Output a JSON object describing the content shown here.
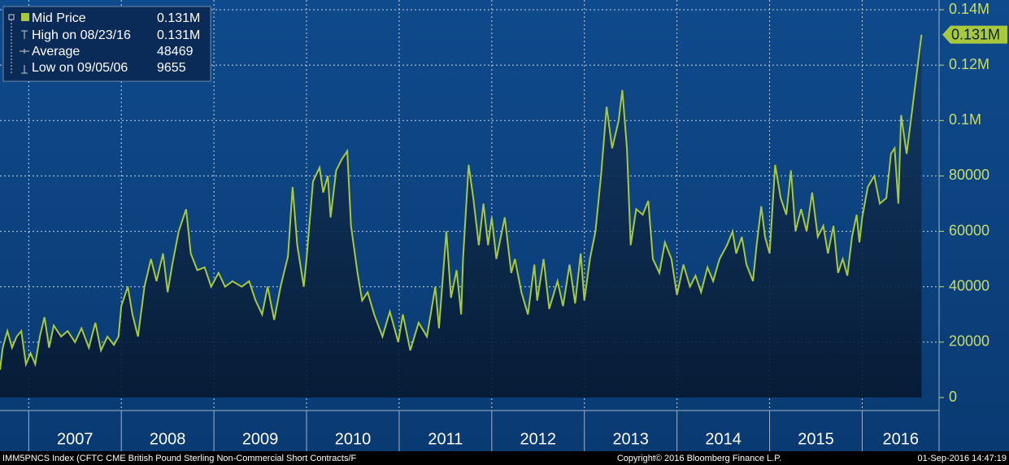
{
  "chart_data": {
    "type": "area",
    "x": [
      2006.69,
      2006.72,
      2006.77,
      2006.82,
      2006.87,
      2006.92,
      2006.97,
      2007.02,
      2007.07,
      2007.12,
      2007.17,
      2007.22,
      2007.27,
      2007.35,
      2007.42,
      2007.5,
      2007.57,
      2007.65,
      2007.72,
      2007.78,
      2007.85,
      2007.92,
      2007.97,
      2008.0,
      2008.07,
      2008.12,
      2008.18,
      2008.25,
      2008.32,
      2008.38,
      2008.45,
      2008.5,
      2008.55,
      2008.62,
      2008.7,
      2008.75,
      2008.82,
      2008.9,
      2008.97,
      2009.05,
      2009.12,
      2009.2,
      2009.3,
      2009.38,
      2009.45,
      2009.52,
      2009.58,
      2009.65,
      2009.72,
      2009.8,
      2009.85,
      2009.9,
      2009.97,
      2010.0,
      2010.07,
      2010.14,
      2010.18,
      2010.23,
      2010.26,
      2010.32,
      2010.38,
      2010.44,
      2010.48,
      2010.55,
      2010.6,
      2010.66,
      2010.73,
      2010.82,
      2010.9,
      2010.99,
      2011.04,
      2011.12,
      2011.21,
      2011.3,
      2011.39,
      2011.43,
      2011.51,
      2011.56,
      2011.62,
      2011.67,
      2011.69,
      2011.75,
      2011.8,
      2011.86,
      2011.91,
      2011.96,
      2012.0,
      2012.05,
      2012.14,
      2012.21,
      2012.25,
      2012.32,
      2012.39,
      2012.46,
      2012.49,
      2012.56,
      2012.62,
      2012.71,
      2012.77,
      2012.84,
      2012.9,
      2012.96,
      2013.0,
      2013.06,
      2013.12,
      2013.18,
      2013.24,
      2013.3,
      2013.37,
      2013.41,
      2013.46,
      2013.5,
      2013.56,
      2013.63,
      2013.69,
      2013.74,
      2013.81,
      2013.87,
      2013.94,
      2014.0,
      2014.07,
      2014.14,
      2014.2,
      2014.26,
      2014.33,
      2014.39,
      2014.46,
      2014.54,
      2014.6,
      2014.64,
      2014.7,
      2014.75,
      2014.82,
      2014.86,
      2014.91,
      2014.95,
      2015.0,
      2015.06,
      2015.12,
      2015.18,
      2015.23,
      2015.28,
      2015.34,
      2015.4,
      2015.46,
      2015.52,
      2015.58,
      2015.63,
      2015.69,
      2015.74,
      2015.79,
      2015.84,
      2015.89,
      2015.94,
      2015.97,
      2016.0,
      2016.06,
      2016.13,
      2016.19,
      2016.26,
      2016.31,
      2016.35,
      2016.39,
      2016.42,
      2016.48,
      2016.54,
      2016.64
    ],
    "series": [
      {
        "name": "Mid Price",
        "color": "#a9c93c",
        "last_label": "0.131M",
        "values": [
          10000,
          18000,
          24000,
          18000,
          22000,
          24000,
          12000,
          16000,
          12000,
          22000,
          29000,
          18000,
          26000,
          22000,
          24000,
          20000,
          25000,
          18000,
          27000,
          17000,
          22000,
          19000,
          22000,
          33000,
          40000,
          30000,
          22000,
          40000,
          50000,
          42000,
          52000,
          38000,
          48000,
          60000,
          68000,
          52000,
          46000,
          47000,
          40000,
          45000,
          40000,
          42000,
          40000,
          42000,
          35000,
          30000,
          40000,
          28000,
          40000,
          51000,
          76000,
          55000,
          40000,
          50000,
          78000,
          83000,
          74000,
          80000,
          65000,
          82000,
          86000,
          89000,
          62000,
          45000,
          35000,
          38000,
          30000,
          22000,
          31000,
          20000,
          30000,
          17000,
          27000,
          22000,
          40000,
          25000,
          60000,
          36000,
          46000,
          30000,
          50000,
          84000,
          72000,
          55000,
          70000,
          55000,
          65000,
          50000,
          65000,
          45000,
          50000,
          38000,
          30000,
          48000,
          35000,
          50000,
          32000,
          42000,
          33000,
          48000,
          34000,
          52000,
          35000,
          50000,
          60000,
          80000,
          105000,
          90000,
          100000,
          111000,
          90000,
          55000,
          68000,
          66000,
          71000,
          50000,
          45000,
          56000,
          50000,
          37000,
          48000,
          40000,
          44000,
          38000,
          47000,
          42000,
          50000,
          55000,
          60000,
          52000,
          58000,
          48000,
          42000,
          55000,
          69000,
          58000,
          52000,
          84000,
          72000,
          66000,
          82000,
          60000,
          68000,
          60000,
          74000,
          58000,
          62000,
          52000,
          62000,
          45000,
          50000,
          44000,
          58000,
          66000,
          56000,
          65000,
          76000,
          80000,
          70000,
          72000,
          88000,
          90000,
          70000,
          102000,
          88000,
          104000,
          131000
        ]
      }
    ],
    "stats": [
      {
        "label": "High on 08/23/16",
        "value": 131000,
        "value_label": "0.131M"
      },
      {
        "label": "Average",
        "value": 48469
      },
      {
        "label": "Low on 09/05/06",
        "value": 9655
      }
    ],
    "xlim": [
      2006.69,
      2016.83
    ],
    "xticks": [
      2007,
      2008,
      2009,
      2010,
      2011,
      2012,
      2013,
      2014,
      2015,
      2016
    ],
    "ylim": [
      0,
      140000
    ],
    "yticks": [
      0,
      20000,
      40000,
      60000,
      80000,
      {
        "value": 100000,
        "label": "0.1M"
      },
      {
        "value": 120000,
        "label": "0.12M"
      },
      {
        "value": 140000,
        "label": "0.14M"
      }
    ],
    "grid": true,
    "source": "IMM5PNCS Index (CFTC CME British Pound Sterling Non-Commercial Short Contracts/F",
    "copyright": "Copyright© 2016 Bloomberg Finance L.P.",
    "timestamp": "01-Sep-2016 14:47:19"
  }
}
